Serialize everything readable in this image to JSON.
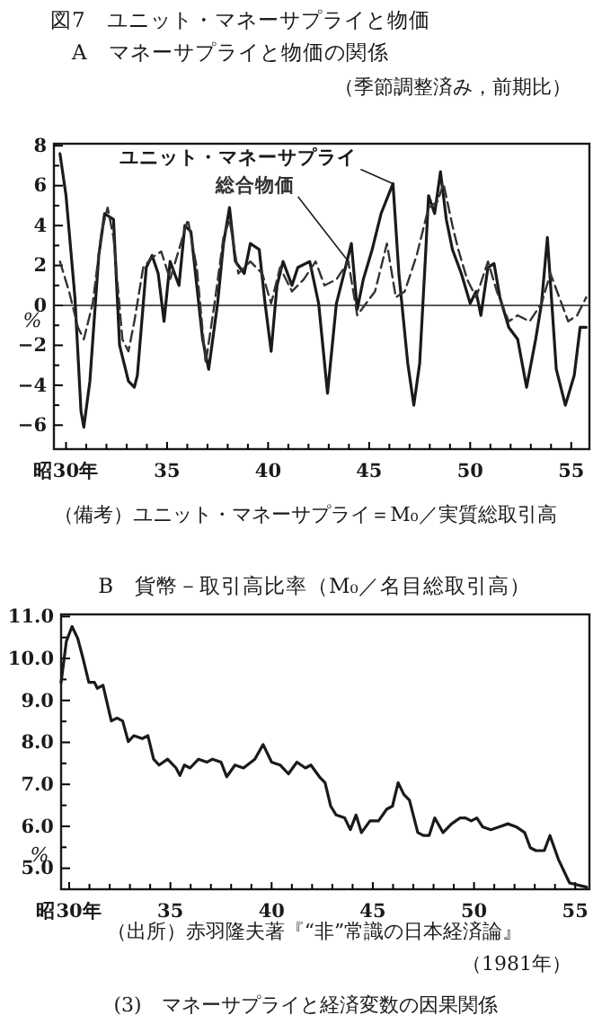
{
  "chart_data": [
    {
      "type": "line",
      "title": "図7　ユニット・マネーサプライと物価",
      "subtitle": "A　マネーサプライと物価の関係",
      "ylabel": "%",
      "annotations": [
        "（季節調整済み，前期比）",
        "（備考）ユニット・マネーサプライ＝M₀／実質総取引高"
      ],
      "xlim": [
        29.4,
        55.9
      ],
      "ylim": [
        -7.2,
        8.1
      ],
      "xticks": [
        {
          "value": 30,
          "label": "昭30年"
        },
        {
          "value": 31,
          "label": null
        },
        {
          "value": 32,
          "label": null
        },
        {
          "value": 33,
          "label": null
        },
        {
          "value": 34,
          "label": null
        },
        35,
        {
          "value": 36,
          "label": null
        },
        {
          "value": 37,
          "label": null
        },
        {
          "value": 38,
          "label": null
        },
        {
          "value": 39,
          "label": null
        },
        40,
        {
          "value": 41,
          "label": null
        },
        {
          "value": 42,
          "label": null
        },
        {
          "value": 43,
          "label": null
        },
        {
          "value": 44,
          "label": null
        },
        45,
        {
          "value": 46,
          "label": null
        },
        {
          "value": 47,
          "label": null
        },
        {
          "value": 48,
          "label": null
        },
        {
          "value": 49,
          "label": null
        },
        50,
        {
          "value": 51,
          "label": null
        },
        {
          "value": 52,
          "label": null
        },
        {
          "value": 53,
          "label": null
        },
        {
          "value": 54,
          "label": null
        },
        55
      ],
      "yticks": [
        {
          "value": -6,
          "label": "−6"
        },
        {
          "value": -5,
          "label": null
        },
        {
          "value": -4,
          "label": "−4"
        },
        {
          "value": -3,
          "label": null
        },
        {
          "value": -2,
          "label": "−2"
        },
        {
          "value": -1,
          "label": null
        },
        0,
        {
          "value": 1,
          "label": null
        },
        2,
        {
          "value": 3,
          "label": null
        },
        4,
        {
          "value": 5,
          "label": null
        },
        6,
        {
          "value": 7,
          "label": null
        },
        8
      ],
      "ref_lines": [
        {
          "axis": "y",
          "value": 0,
          "color": "#222222",
          "line_style": "solid"
        }
      ],
      "grid": false,
      "legend": false,
      "marker": "none",
      "series": [
        {
          "name": "ユニット・マネーサプライ",
          "color": "#1a1a1a",
          "line_style": "solid",
          "x": [
            29.7,
            30.0,
            30.44,
            30.74,
            30.88,
            31.18,
            31.62,
            31.91,
            32.35,
            32.65,
            33.09,
            33.38,
            33.53,
            33.97,
            34.26,
            34.56,
            34.85,
            35.15,
            35.59,
            35.88,
            36.18,
            36.76,
            37.06,
            37.5,
            37.79,
            38.09,
            38.38,
            38.82,
            39.12,
            39.56,
            39.85,
            40.15,
            40.44,
            40.74,
            41.18,
            41.47,
            42.06,
            42.5,
            42.94,
            43.38,
            43.68,
            44.12,
            44.41,
            44.71,
            45.15,
            45.59,
            46.18,
            46.47,
            46.91,
            47.21,
            47.5,
            47.79,
            47.94,
            48.24,
            48.53,
            48.82,
            49.12,
            49.56,
            50.0,
            50.29,
            50.53,
            50.88,
            51.18,
            51.47,
            51.91,
            52.35,
            52.79,
            53.24,
            53.53,
            53.82,
            54.26,
            54.71,
            55.15,
            55.44,
            55.74
          ],
          "values": [
            7.6,
            5.5,
            0.4,
            -5.3,
            -6.1,
            -3.8,
            2.5,
            4.6,
            4.3,
            -2.0,
            -3.8,
            -4.1,
            -3.5,
            1.9,
            2.5,
            1.6,
            -0.8,
            2.2,
            1.0,
            4.0,
            3.7,
            -1.7,
            -3.2,
            0.1,
            3.1,
            4.9,
            2.2,
            1.6,
            3.1,
            2.8,
            0.1,
            -2.3,
            1.0,
            2.2,
            1.0,
            1.9,
            2.2,
            0.1,
            -4.4,
            0.1,
            1.3,
            3.1,
            -0.2,
            1.3,
            2.8,
            4.6,
            6.1,
            1.6,
            -2.9,
            -5.0,
            -2.9,
            2.5,
            5.5,
            4.6,
            6.7,
            4.3,
            2.8,
            1.6,
            0.1,
            0.7,
            -0.5,
            1.9,
            2.1,
            0.4,
            -1.1,
            -1.7,
            -4.1,
            -1.7,
            0.1,
            3.4,
            -3.2,
            -5.0,
            -3.5,
            -1.1,
            -1.1
          ]
        },
        {
          "name": "総合物価",
          "color": "#333333",
          "line_style": "dashed",
          "x": [
            29.7,
            30.15,
            30.59,
            30.88,
            31.32,
            31.76,
            32.06,
            32.35,
            32.79,
            33.09,
            33.38,
            33.82,
            34.26,
            34.71,
            35.15,
            35.59,
            36.03,
            36.47,
            36.91,
            37.35,
            37.79,
            38.09,
            38.53,
            39.12,
            39.71,
            40.15,
            40.59,
            41.18,
            41.76,
            42.35,
            42.79,
            43.38,
            43.97,
            44.41,
            44.85,
            45.29,
            45.88,
            46.32,
            46.76,
            47.35,
            47.94,
            48.38,
            48.68,
            49.12,
            49.41,
            49.85,
            50.29,
            50.88,
            51.32,
            51.91,
            52.35,
            52.94,
            53.53,
            53.97,
            54.41,
            54.85,
            55.29,
            55.74
          ],
          "values": [
            2.2,
            0.7,
            -1.1,
            -1.7,
            0.1,
            3.7,
            4.9,
            3.4,
            -1.7,
            -2.3,
            -0.8,
            1.9,
            2.4,
            2.7,
            1.3,
            2.8,
            4.3,
            1.9,
            -2.9,
            0.1,
            3.4,
            4.3,
            1.6,
            2.2,
            1.6,
            0.1,
            1.9,
            0.7,
            1.3,
            2.2,
            1.0,
            1.3,
            2.2,
            -0.5,
            0.1,
            0.7,
            3.1,
            0.4,
            0.7,
            2.5,
            4.9,
            5.2,
            6.1,
            4.0,
            2.8,
            1.3,
            0.4,
            2.2,
            0.7,
            -0.8,
            -0.5,
            -0.8,
            0.1,
            1.6,
            0.4,
            -0.8,
            -0.5,
            0.4
          ]
        }
      ]
    },
    {
      "type": "line",
      "title": "B　貨幣－取引高比率（M₀／名目総取引高）",
      "ylabel": "%",
      "annotations": [
        "（出所）赤羽隆夫著『“非”常識の日本経済論』",
        "（1981年）",
        "(3)　マネーサプライと経済変数の因果関係"
      ],
      "xlim": [
        29.6,
        55.7
      ],
      "ylim": [
        4.5,
        11.05
      ],
      "xticks": [
        {
          "value": 30,
          "label": "昭30年"
        },
        {
          "value": 31,
          "label": null
        },
        {
          "value": 32,
          "label": null
        },
        {
          "value": 33,
          "label": null
        },
        {
          "value": 34,
          "label": null
        },
        35,
        {
          "value": 36,
          "label": null
        },
        {
          "value": 37,
          "label": null
        },
        {
          "value": 38,
          "label": null
        },
        {
          "value": 39,
          "label": null
        },
        40,
        {
          "value": 41,
          "label": null
        },
        {
          "value": 42,
          "label": null
        },
        {
          "value": 43,
          "label": null
        },
        {
          "value": 44,
          "label": null
        },
        45,
        {
          "value": 46,
          "label": null
        },
        {
          "value": 47,
          "label": null
        },
        {
          "value": 48,
          "label": null
        },
        {
          "value": 49,
          "label": null
        },
        50,
        {
          "value": 51,
          "label": null
        },
        {
          "value": 52,
          "label": null
        },
        {
          "value": 53,
          "label": null
        },
        {
          "value": 54,
          "label": null
        },
        55
      ],
      "yticks": [
        {
          "value": 5,
          "label": "5.0"
        },
        {
          "value": 5.5,
          "label": null
        },
        {
          "value": 6,
          "label": "6.0"
        },
        {
          "value": 6.5,
          "label": null
        },
        {
          "value": 7,
          "label": "7.0"
        },
        {
          "value": 7.5,
          "label": null
        },
        {
          "value": 8,
          "label": "8.0"
        },
        {
          "value": 8.5,
          "label": null
        },
        {
          "value": 9,
          "label": "9.0"
        },
        {
          "value": 9.5,
          "label": null
        },
        {
          "value": 10,
          "label": "10.0"
        },
        {
          "value": 10.5,
          "label": null
        },
        {
          "value": 11,
          "label": "11.0"
        }
      ],
      "grid": false,
      "legend": false,
      "marker": "none",
      "series": [
        {
          "color": "#1a1a1a",
          "line_style": "solid",
          "x": [
            29.6,
            29.86,
            30.14,
            30.42,
            30.69,
            30.97,
            31.25,
            31.39,
            31.67,
            32.08,
            32.36,
            32.64,
            32.92,
            33.19,
            33.61,
            33.89,
            34.17,
            34.44,
            34.86,
            35.28,
            35.47,
            35.69,
            35.97,
            36.39,
            36.81,
            37.08,
            37.5,
            37.78,
            38.19,
            38.61,
            39.17,
            39.58,
            40.0,
            40.42,
            40.83,
            41.25,
            41.67,
            41.94,
            42.36,
            42.64,
            42.92,
            43.19,
            43.61,
            43.89,
            44.17,
            44.44,
            44.86,
            45.28,
            45.69,
            45.97,
            46.25,
            46.53,
            46.81,
            47.22,
            47.5,
            47.78,
            48.06,
            48.47,
            48.89,
            49.31,
            49.58,
            49.86,
            50.14,
            50.42,
            50.83,
            51.25,
            51.67,
            52.08,
            52.5,
            52.78,
            53.06,
            53.47,
            53.75,
            54.17,
            54.72,
            55.56
          ],
          "values": [
            9.43,
            10.41,
            10.76,
            10.48,
            9.99,
            9.43,
            9.43,
            9.29,
            9.36,
            8.51,
            8.58,
            8.51,
            8.02,
            8.16,
            8.09,
            8.16,
            7.6,
            7.46,
            7.6,
            7.39,
            7.21,
            7.46,
            7.39,
            7.6,
            7.53,
            7.6,
            7.53,
            7.18,
            7.46,
            7.39,
            7.6,
            7.95,
            7.53,
            7.46,
            7.25,
            7.53,
            7.39,
            7.46,
            7.18,
            7.04,
            6.48,
            6.27,
            6.2,
            5.92,
            6.27,
            5.85,
            6.13,
            6.13,
            6.41,
            6.48,
            7.04,
            6.76,
            6.62,
            5.85,
            5.78,
            5.78,
            6.2,
            5.85,
            6.06,
            6.2,
            6.2,
            6.13,
            6.2,
            5.99,
            5.92,
            5.99,
            6.06,
            5.99,
            5.85,
            5.49,
            5.42,
            5.42,
            5.78,
            5.21,
            4.65,
            4.55
          ]
        }
      ]
    }
  ]
}
